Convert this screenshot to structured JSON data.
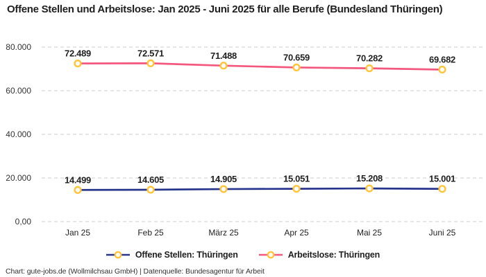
{
  "title": "Offene Stellen und Arbeitslose: Jan 2025 - Juni 2025 für alle Berufe (Bundesland Thüringen)",
  "attribution": "Chart: gute-jobs.de (Wollmilchsau GmbH) | Datenquelle: Bundesagentur für Arbeit",
  "colors": {
    "open_positions_line": "#27348B",
    "unemployed_line": "#F4577D",
    "marker_ring": "#FFC53D",
    "marker_fill": "#FFFFFF",
    "gridline": "#CCCCCC",
    "text": "#1F1F1F"
  },
  "chart_data": {
    "type": "line",
    "title": "Offene Stellen und Arbeitslose: Jan 2025 - Juni 2025 für alle Berufe (Bundesland Thüringen)",
    "xlabel": "",
    "ylabel": "",
    "categories": [
      "Jan 25",
      "Feb 25",
      "März 25",
      "Apr 25",
      "Mai 25",
      "Juni 25"
    ],
    "series": [
      {
        "name": "Offene Stellen: Thüringen",
        "color": "#27348B",
        "values": [
          14499,
          14605,
          14905,
          15051,
          15208,
          15001
        ],
        "labels": [
          "14.499",
          "14.605",
          "14.905",
          "15.051",
          "15.208",
          "15.001"
        ]
      },
      {
        "name": "Arbeitslose: Thüringen",
        "color": "#F4577D",
        "values": [
          72489,
          72571,
          71488,
          70659,
          70282,
          69682
        ],
        "labels": [
          "72.489",
          "72.571",
          "71.488",
          "70.659",
          "70.282",
          "69.682"
        ]
      }
    ],
    "y_ticks": [
      {
        "value": 0,
        "label": "0,00"
      },
      {
        "value": 20000,
        "label": "20.000"
      },
      {
        "value": 40000,
        "label": "40.000"
      },
      {
        "value": 60000,
        "label": "60.000"
      },
      {
        "value": 80000,
        "label": "80.000"
      }
    ],
    "ylim": [
      0,
      80000
    ],
    "grid": "dashed-horizontal",
    "marker_color": "#FFC53D",
    "legend_position": "bottom"
  }
}
